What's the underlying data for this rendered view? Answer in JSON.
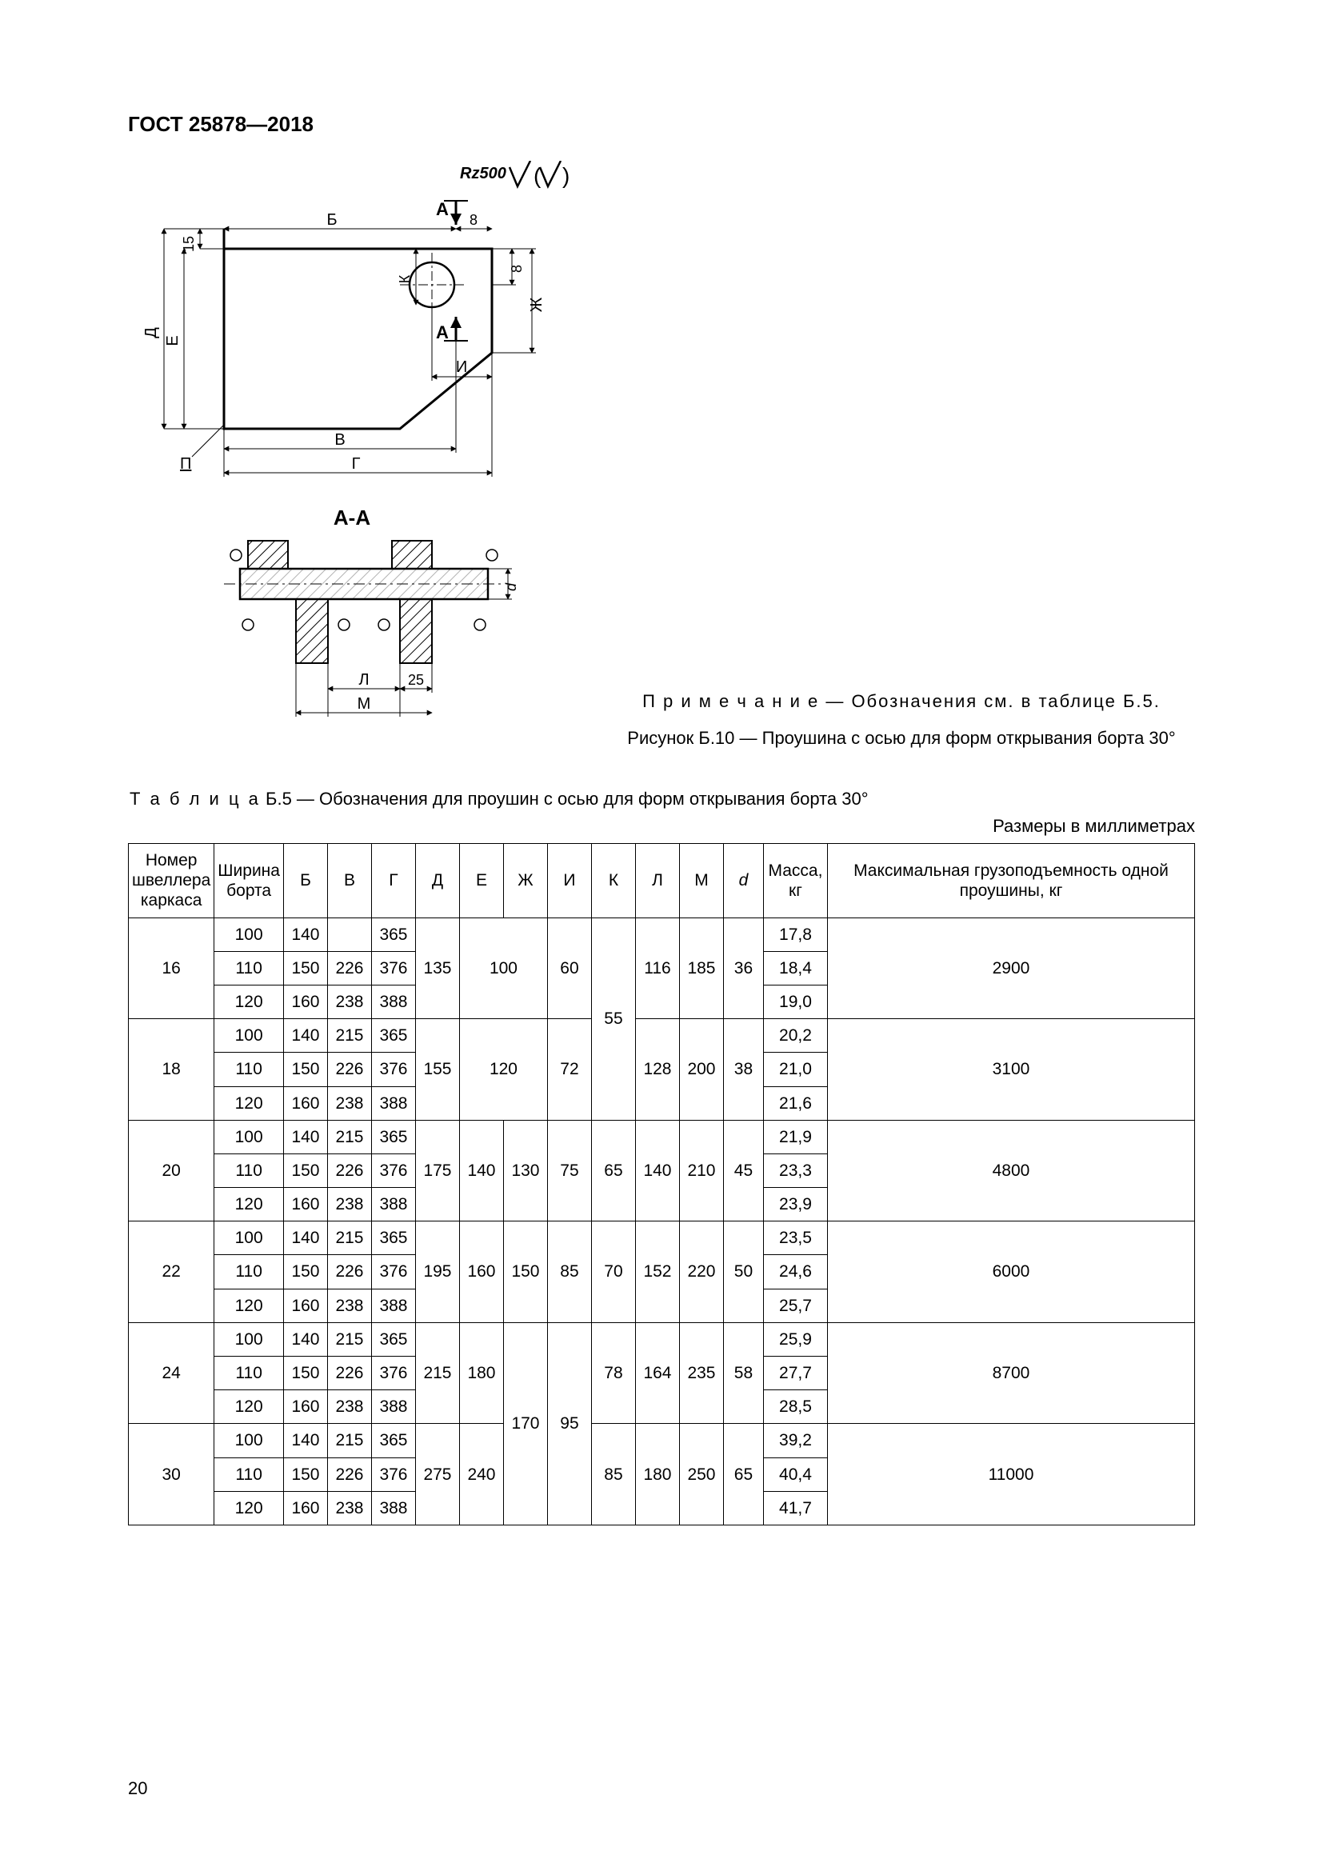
{
  "header": "ГОСТ 25878—2018",
  "page_number": "20",
  "roughness": "Rz500",
  "drawing": {
    "labels": {
      "A1": "А",
      "A2": "А",
      "AA": "А-А",
      "B": "Б",
      "V": "В",
      "G": "Г",
      "D": "Д",
      "E": "Е",
      "Zh": "Ж",
      "I": "И",
      "K": "К",
      "L": "Л",
      "M": "М",
      "P": "П",
      "D_dim": "d",
      "d15": "15",
      "d8a": "8",
      "d8b": "8",
      "d25": "25"
    }
  },
  "figure": {
    "note_label": "П р и м е ч а н и е",
    "note_text": " — Обозначения см. в таблице Б.5.",
    "caption": "Рисунок Б.10 — Проушина с осью для форм открывания борта 30°"
  },
  "table": {
    "title_label": "Т а б л и ц а",
    "title_rest": "  Б.5 — Обозначения для проушин с осью для форм открывания борта 30°",
    "units": "Размеры в миллиметрах",
    "columns": {
      "c1": "Номер швеллера каркаса",
      "c2": "Ширина борта",
      "c3": "Б",
      "c4": "В",
      "c5": "Г",
      "c6": "Д",
      "c7": "Е",
      "c8": "Ж",
      "c9": "И",
      "c10": "К",
      "c11": "Л",
      "c12": "М",
      "c13": "d",
      "c14": "Масса, кг",
      "c15": "Максимальная грузоподъемность одной проушины, кг"
    },
    "groups": [
      {
        "frame": "16",
        "D": "135",
        "E": "100",
        "Zh": "",
        "I": "60",
        "K": "55",
        "L": "116",
        "M": "185",
        "d": "36",
        "cap": "2900",
        "E_colspan": 2,
        "rows": [
          {
            "w": "100",
            "B": "140",
            "V": "",
            "G": "365",
            "mass": "17,8"
          },
          {
            "w": "110",
            "B": "150",
            "V": "226",
            "G": "376",
            "mass": "18,4"
          },
          {
            "w": "120",
            "B": "160",
            "V": "238",
            "G": "388",
            "mass": "19,0"
          }
        ]
      },
      {
        "frame": "18",
        "D": "155",
        "E": "120",
        "Zh": "",
        "I": "72",
        "K": "",
        "L": "128",
        "M": "200",
        "d": "38",
        "cap": "3100",
        "E_colspan": 2,
        "rows": [
          {
            "w": "100",
            "B": "140",
            "V": "215",
            "G": "365",
            "mass": "20,2"
          },
          {
            "w": "110",
            "B": "150",
            "V": "226",
            "G": "376",
            "mass": "21,0"
          },
          {
            "w": "120",
            "B": "160",
            "V": "238",
            "G": "388",
            "mass": "21,6"
          }
        ]
      },
      {
        "frame": "20",
        "D": "175",
        "E": "140",
        "Zh": "130",
        "I": "75",
        "K": "65",
        "L": "140",
        "M": "210",
        "d": "45",
        "cap": "4800",
        "E_colspan": 1,
        "rows": [
          {
            "w": "100",
            "B": "140",
            "V": "215",
            "G": "365",
            "mass": "21,9"
          },
          {
            "w": "110",
            "B": "150",
            "V": "226",
            "G": "376",
            "mass": "23,3"
          },
          {
            "w": "120",
            "B": "160",
            "V": "238",
            "G": "388",
            "mass": "23,9"
          }
        ]
      },
      {
        "frame": "22",
        "D": "195",
        "E": "160",
        "Zh": "150",
        "I": "85",
        "K": "70",
        "L": "152",
        "M": "220",
        "d": "50",
        "cap": "6000",
        "E_colspan": 1,
        "rows": [
          {
            "w": "100",
            "B": "140",
            "V": "215",
            "G": "365",
            "mass": "23,5"
          },
          {
            "w": "110",
            "B": "150",
            "V": "226",
            "G": "376",
            "mass": "24,6"
          },
          {
            "w": "120",
            "B": "160",
            "V": "238",
            "G": "388",
            "mass": "25,7"
          }
        ]
      },
      {
        "frame": "24",
        "D": "215",
        "E": "180",
        "Zh": "170",
        "I": "95",
        "K": "78",
        "L": "164",
        "M": "235",
        "d": "58",
        "cap": "8700",
        "E_colspan": 1,
        "Zh_rowspan": 6,
        "I_rowspan": 6,
        "rows": [
          {
            "w": "100",
            "B": "140",
            "V": "215",
            "G": "365",
            "mass": "25,9"
          },
          {
            "w": "110",
            "B": "150",
            "V": "226",
            "G": "376",
            "mass": "27,7"
          },
          {
            "w": "120",
            "B": "160",
            "V": "238",
            "G": "388",
            "mass": "28,5"
          }
        ]
      },
      {
        "frame": "30",
        "D": "275",
        "E": "240",
        "Zh": "",
        "I": "",
        "K": "85",
        "L": "180",
        "M": "250",
        "d": "65",
        "cap": "11000",
        "E_colspan": 1,
        "skip_Zh_I": true,
        "rows": [
          {
            "w": "100",
            "B": "140",
            "V": "215",
            "G": "365",
            "mass": "39,2"
          },
          {
            "w": "110",
            "B": "150",
            "V": "226",
            "G": "376",
            "mass": "40,4"
          },
          {
            "w": "120",
            "B": "160",
            "V": "238",
            "G": "388",
            "mass": "41,7"
          }
        ]
      }
    ]
  }
}
